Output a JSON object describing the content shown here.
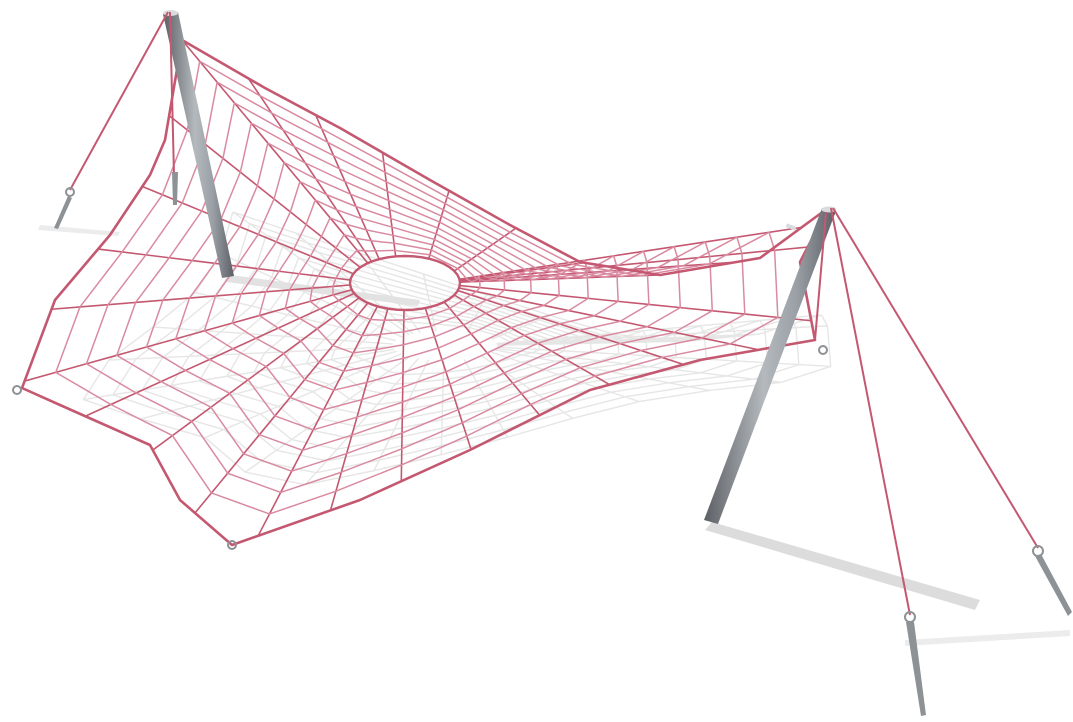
{
  "scene": {
    "subject": "spider-web-rope-net-between-two-poles",
    "colors": {
      "background": "#ffffff",
      "rope": "#c45870",
      "rope_light": "#d98aa0",
      "shadow": "#e6e6e6",
      "pole_dark": "#5c6066",
      "pole_mid": "#9aa0a6",
      "pole_light": "#d9dcdf",
      "hardware": "#8d9296"
    }
  }
}
